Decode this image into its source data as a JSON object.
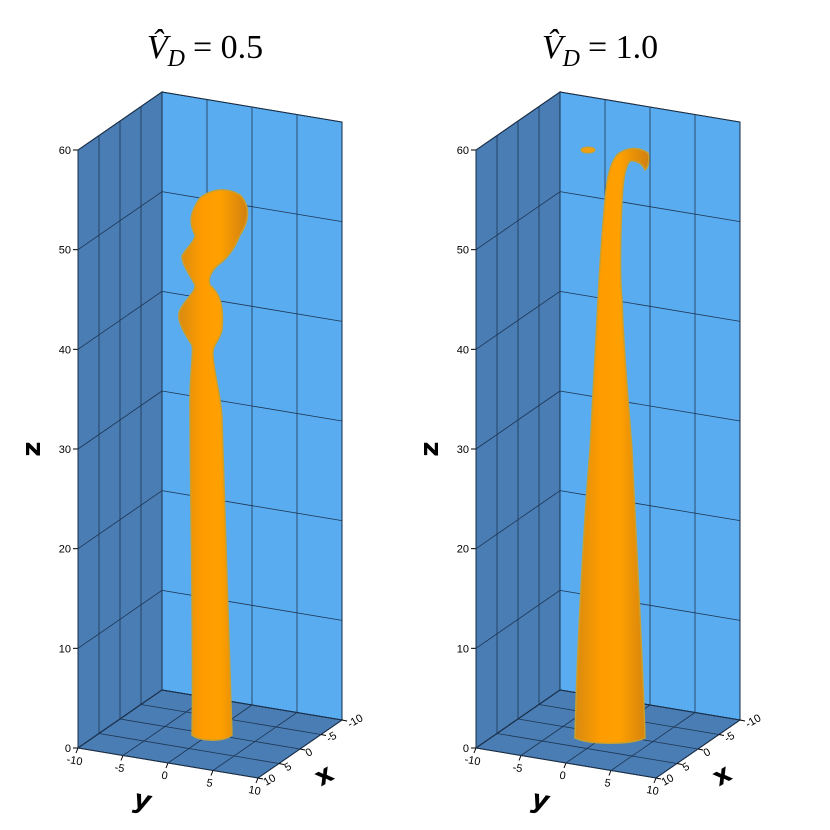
{
  "chart_data": [
    {
      "type": "isosurface3d",
      "title": {
        "symbol": "V̂",
        "subscript": "D",
        "rest": "= 0.5"
      },
      "xlabel": "x",
      "ylabel": "y",
      "zlabel": "z",
      "xlim": [
        -10,
        10
      ],
      "xticks": [
        -10,
        -5,
        0,
        5,
        10
      ],
      "ylim": [
        -10,
        10
      ],
      "yticks": [
        -10,
        -5,
        0,
        5,
        10
      ],
      "zlim": [
        0,
        60
      ],
      "zticks": [
        0,
        10,
        20,
        30,
        40,
        50,
        60
      ],
      "grid": true,
      "wall_color": "#4a7db4",
      "back_color": "#5aacf0"
    },
    {
      "type": "isosurface3d",
      "title": {
        "symbol": "V̂",
        "subscript": "D",
        "rest": "= 1.0"
      },
      "xlabel": "x",
      "ylabel": "y",
      "zlabel": "z",
      "xlim": [
        -10,
        10
      ],
      "xticks": [
        -10,
        -5,
        0,
        5,
        10
      ],
      "ylim": [
        -10,
        10
      ],
      "yticks": [
        -10,
        -5,
        0,
        5,
        10
      ],
      "zlim": [
        0,
        60
      ],
      "zticks": [
        0,
        10,
        20,
        30,
        40,
        50,
        60
      ],
      "grid": true,
      "wall_color": "#4a7db4",
      "back_color": "#5aacf0"
    }
  ]
}
